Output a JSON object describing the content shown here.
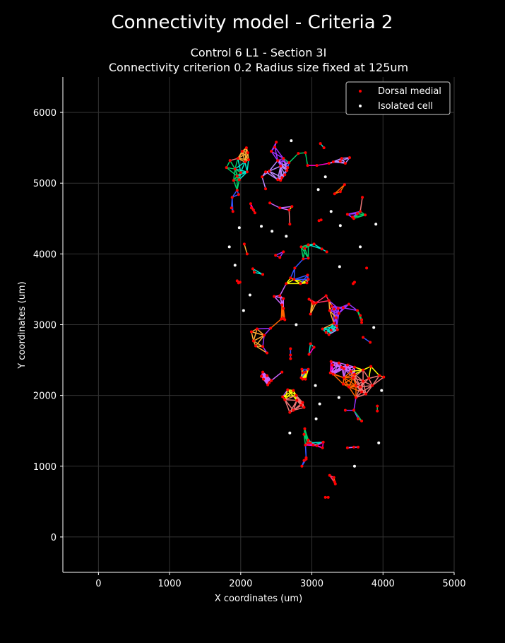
{
  "figure": {
    "suptitle": "Connectivity model - Criteria 2",
    "title_line1": "Control 6 L1 - Section 3I",
    "title_line2": "Connectivity criterion 0.2  Radius size fixed at 125um"
  },
  "chart_data": {
    "type": "scatter",
    "xlabel": "X coordinates (um)",
    "ylabel": "Y coordinates (um)",
    "xlim": [
      -500,
      5000
    ],
    "ylim": [
      -500,
      6500
    ],
    "xticks": [
      0,
      1000,
      2000,
      3000,
      4000,
      5000
    ],
    "yticks": [
      0,
      1000,
      2000,
      3000,
      4000,
      5000,
      6000
    ],
    "grid": true,
    "legend_position": "top-right",
    "series": [
      {
        "name": "Dorsal medial",
        "color": "#ff0000",
        "points": [
          [
            2080,
            5500
          ],
          [
            2020,
            5450
          ],
          [
            2100,
            5430
          ],
          [
            1960,
            5350
          ],
          [
            2060,
            5300
          ],
          [
            2110,
            5330
          ],
          [
            1850,
            5320
          ],
          [
            1800,
            5220
          ],
          [
            1920,
            5200
          ],
          [
            2000,
            5150
          ],
          [
            2090,
            5160
          ],
          [
            1950,
            5100
          ],
          [
            1980,
            5050
          ],
          [
            1900,
            5040
          ],
          [
            1950,
            4900
          ],
          [
            1970,
            4840
          ],
          [
            1880,
            4800
          ],
          [
            1870,
            4650
          ],
          [
            1890,
            4600
          ],
          [
            2140,
            4710
          ],
          [
            2150,
            4650
          ],
          [
            2180,
            4620
          ],
          [
            2200,
            4580
          ],
          [
            2350,
            4920
          ],
          [
            2410,
            4720
          ],
          [
            2550,
            4650
          ],
          [
            2680,
            4620
          ],
          [
            2720,
            4670
          ],
          [
            2690,
            4420
          ],
          [
            2300,
            5090
          ],
          [
            2350,
            5160
          ],
          [
            2400,
            5170
          ],
          [
            2500,
            5580
          ],
          [
            2480,
            5510
          ],
          [
            2430,
            5450
          ],
          [
            2520,
            5320
          ],
          [
            2600,
            5350
          ],
          [
            2560,
            5240
          ],
          [
            2680,
            5290
          ],
          [
            2650,
            5180
          ],
          [
            2620,
            5120
          ],
          [
            2580,
            5080
          ],
          [
            2520,
            5050
          ],
          [
            2560,
            5040
          ],
          [
            2660,
            5220
          ],
          [
            2810,
            5420
          ],
          [
            2910,
            5430
          ],
          [
            2940,
            5250
          ],
          [
            3070,
            5250
          ],
          [
            3120,
            5560
          ],
          [
            3170,
            5500
          ],
          [
            3240,
            5280
          ],
          [
            3300,
            5300
          ],
          [
            3400,
            5310
          ],
          [
            3420,
            5350
          ],
          [
            3470,
            5280
          ],
          [
            3530,
            5360
          ],
          [
            3320,
            4850
          ],
          [
            3400,
            4880
          ],
          [
            3460,
            4980
          ],
          [
            3100,
            4470
          ],
          [
            3130,
            4480
          ],
          [
            3500,
            4560
          ],
          [
            3570,
            4520
          ],
          [
            3640,
            4570
          ],
          [
            3680,
            4600
          ],
          [
            3590,
            4500
          ],
          [
            3710,
            4800
          ],
          [
            3750,
            4550
          ],
          [
            2050,
            4140
          ],
          [
            2090,
            4000
          ],
          [
            2170,
            3790
          ],
          [
            2190,
            3740
          ],
          [
            2310,
            3710
          ],
          [
            1950,
            3620
          ],
          [
            1990,
            3600
          ],
          [
            1970,
            3590
          ],
          [
            2490,
            3980
          ],
          [
            2550,
            3950
          ],
          [
            2600,
            4030
          ],
          [
            2850,
            4100
          ],
          [
            2900,
            4080
          ],
          [
            2950,
            4130
          ],
          [
            3030,
            4140
          ],
          [
            3140,
            4070
          ],
          [
            3210,
            4030
          ],
          [
            2880,
            3930
          ],
          [
            2950,
            3940
          ],
          [
            2760,
            3800
          ],
          [
            2700,
            3660
          ],
          [
            2640,
            3580
          ],
          [
            2750,
            3640
          ],
          [
            2840,
            3580
          ],
          [
            2930,
            3590
          ],
          [
            2950,
            3640
          ],
          [
            2940,
            3700
          ],
          [
            3770,
            3800
          ],
          [
            3600,
            3600
          ],
          [
            3580,
            3580
          ],
          [
            2470,
            3400
          ],
          [
            2550,
            3410
          ],
          [
            2600,
            3370
          ],
          [
            2580,
            3280
          ],
          [
            2600,
            3230
          ],
          [
            2600,
            3090
          ],
          [
            2570,
            3080
          ],
          [
            2620,
            3070
          ],
          [
            2960,
            3360
          ],
          [
            3000,
            3330
          ],
          [
            3020,
            3300
          ],
          [
            3060,
            3310
          ],
          [
            2980,
            3150
          ],
          [
            3200,
            3410
          ],
          [
            3240,
            3340
          ],
          [
            3280,
            3260
          ],
          [
            3310,
            3220
          ],
          [
            3250,
            3200
          ],
          [
            3370,
            3230
          ],
          [
            3440,
            3240
          ],
          [
            3520,
            3290
          ],
          [
            3380,
            3160
          ],
          [
            3340,
            3100
          ],
          [
            3310,
            3020
          ],
          [
            3350,
            2980
          ],
          [
            3360,
            2930
          ],
          [
            3270,
            2920
          ],
          [
            3200,
            2890
          ],
          [
            3150,
            2940
          ],
          [
            3240,
            2860
          ],
          [
            3640,
            3200
          ],
          [
            3680,
            3130
          ],
          [
            3700,
            3070
          ],
          [
            3700,
            3030
          ],
          [
            3720,
            2820
          ],
          [
            3820,
            2750
          ],
          [
            2150,
            2900
          ],
          [
            2230,
            2940
          ],
          [
            2330,
            2850
          ],
          [
            2420,
            2950
          ],
          [
            2180,
            2770
          ],
          [
            2210,
            2700
          ],
          [
            2310,
            2690
          ],
          [
            2370,
            2600
          ],
          [
            2700,
            2660
          ],
          [
            2700,
            2570
          ],
          [
            2700,
            2520
          ],
          [
            2980,
            2730
          ],
          [
            3030,
            2680
          ],
          [
            2960,
            2580
          ],
          [
            2310,
            2330
          ],
          [
            2290,
            2270
          ],
          [
            2370,
            2280
          ],
          [
            2320,
            2230
          ],
          [
            2400,
            2180
          ],
          [
            2380,
            2150
          ],
          [
            2430,
            2210
          ],
          [
            2580,
            2330
          ],
          [
            2860,
            2370
          ],
          [
            2870,
            2320
          ],
          [
            2910,
            2330
          ],
          [
            2950,
            2370
          ],
          [
            2850,
            2250
          ],
          [
            2870,
            2230
          ],
          [
            2910,
            2230
          ],
          [
            3270,
            2480
          ],
          [
            3290,
            2430
          ],
          [
            3380,
            2460
          ],
          [
            3420,
            2400
          ],
          [
            3260,
            2320
          ],
          [
            3300,
            2300
          ],
          [
            3500,
            2430
          ],
          [
            3600,
            2400
          ],
          [
            3720,
            2360
          ],
          [
            3830,
            2410
          ],
          [
            3450,
            2380
          ],
          [
            3550,
            2340
          ],
          [
            3600,
            2300
          ],
          [
            3580,
            2250
          ],
          [
            3450,
            2250
          ],
          [
            3440,
            2160
          ],
          [
            3520,
            2120
          ],
          [
            3620,
            2140
          ],
          [
            3680,
            2120
          ],
          [
            3720,
            2200
          ],
          [
            3800,
            2240
          ],
          [
            3850,
            2140
          ],
          [
            3700,
            2050
          ],
          [
            3760,
            2020
          ],
          [
            3620,
            1970
          ],
          [
            3470,
            1790
          ],
          [
            3590,
            1790
          ],
          [
            3650,
            1670
          ],
          [
            3700,
            1640
          ],
          [
            3950,
            2280
          ],
          [
            4010,
            2260
          ],
          [
            2660,
            2080
          ],
          [
            2740,
            2070
          ],
          [
            2780,
            2000
          ],
          [
            2790,
            1930
          ],
          [
            2870,
            1900
          ],
          [
            2850,
            1860
          ],
          [
            2740,
            1790
          ],
          [
            2690,
            1760
          ],
          [
            2590,
            1980
          ],
          [
            2620,
            1940
          ],
          [
            2890,
            1830
          ],
          [
            2900,
            1530
          ],
          [
            2890,
            1450
          ],
          [
            2950,
            1370
          ],
          [
            2980,
            1330
          ],
          [
            3020,
            1300
          ],
          [
            3070,
            1290
          ],
          [
            3150,
            1260
          ],
          [
            3160,
            1340
          ],
          [
            2940,
            1330
          ],
          [
            2910,
            1300
          ],
          [
            2920,
            1120
          ],
          [
            2920,
            1100
          ],
          [
            2890,
            1080
          ],
          [
            2860,
            1000
          ],
          [
            3250,
            870
          ],
          [
            3310,
            840
          ],
          [
            3320,
            780
          ],
          [
            3330,
            750
          ],
          [
            3190,
            560
          ],
          [
            3230,
            560
          ],
          [
            3500,
            1260
          ],
          [
            3650,
            1270
          ],
          [
            3920,
            1850
          ],
          [
            3920,
            1780
          ],
          [
            3590,
            1270
          ]
        ]
      },
      {
        "name": "Isolated cell",
        "color": "#ffffff",
        "points": [
          [
            2710,
            5600
          ],
          [
            3190,
            5090
          ],
          [
            3090,
            4910
          ],
          [
            3270,
            4600
          ],
          [
            3900,
            4420
          ],
          [
            3400,
            4400
          ],
          [
            1980,
            4370
          ],
          [
            2290,
            4390
          ],
          [
            2440,
            4320
          ],
          [
            2640,
            4250
          ],
          [
            1840,
            4100
          ],
          [
            1920,
            3840
          ],
          [
            3680,
            4100
          ],
          [
            3390,
            3820
          ],
          [
            2130,
            3420
          ],
          [
            2040,
            3200
          ],
          [
            2780,
            3000
          ],
          [
            3870,
            2960
          ],
          [
            3050,
            2140
          ],
          [
            3110,
            1880
          ],
          [
            3380,
            1970
          ],
          [
            3980,
            2070
          ],
          [
            3060,
            1670
          ],
          [
            2690,
            1470
          ],
          [
            3940,
            1330
          ],
          [
            3600,
            1000
          ]
        ]
      }
    ]
  }
}
